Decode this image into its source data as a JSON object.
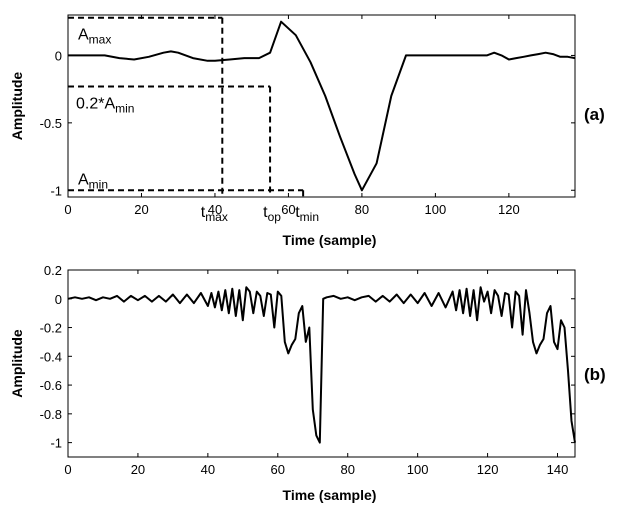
{
  "chart_data": [
    {
      "id": "a",
      "type": "line",
      "panel_label": "(a)",
      "title": "",
      "xlabel": "Time (sample)",
      "ylabel": "Amplitude",
      "xlim": [
        0,
        138
      ],
      "ylim": [
        -1.05,
        0.3
      ],
      "xticks": [
        0,
        20,
        40,
        60,
        80,
        100,
        120
      ],
      "yticks": [
        0,
        -0.5,
        -1
      ],
      "ytick_labels": [
        "0",
        "-0.5",
        "-1"
      ],
      "grid": false,
      "series": [
        {
          "x": [
            0,
            5,
            10,
            14,
            18,
            22,
            26,
            28,
            30,
            34,
            38,
            40,
            44,
            48,
            52,
            55,
            58,
            62,
            66,
            70,
            74,
            78,
            80,
            84,
            88,
            92,
            96,
            98,
            100,
            104,
            106,
            108,
            110,
            112,
            114,
            116,
            118,
            120,
            122,
            124,
            126,
            128,
            130,
            132,
            133,
            134,
            136,
            138
          ],
          "y": [
            0,
            0,
            0,
            -0.02,
            -0.03,
            -0.01,
            0.02,
            0.03,
            0.02,
            -0.02,
            -0.04,
            -0.04,
            -0.03,
            -0.02,
            -0.02,
            0.02,
            0.25,
            0.15,
            -0.05,
            -0.3,
            -0.6,
            -0.88,
            -1.0,
            -0.8,
            -0.3,
            0.0,
            0.0,
            0.0,
            0.0,
            0.0,
            0.0,
            0.0,
            0.0,
            0.0,
            0.0,
            0.02,
            0.0,
            -0.03,
            -0.02,
            -0.01,
            0.0,
            0.01,
            0.02,
            0.01,
            0.0,
            -0.01,
            -0.01,
            -0.02
          ]
        }
      ],
      "annotations": {
        "a_max": {
          "label": "A",
          "sub": "max",
          "y": 0.28,
          "x_end": 42
        },
        "a_min_02": {
          "label": "0.2*A",
          "sub": "min",
          "y": -0.23,
          "x_end": 55
        },
        "a_min": {
          "label": "A",
          "sub": "min",
          "y": -1.0,
          "x_end": 64
        },
        "t_max": {
          "label": "t",
          "sub": "max",
          "x": 42
        },
        "t_op": {
          "label": "t",
          "sub": "op",
          "x": 55
        },
        "t_min": {
          "label": "t",
          "sub": "min",
          "x": 64
        }
      }
    },
    {
      "id": "b",
      "type": "line",
      "panel_label": "(b)",
      "title": "",
      "xlabel": "Time (sample)",
      "ylabel": "Amplitude",
      "xlim": [
        0,
        145
      ],
      "ylim": [
        -1.1,
        0.2
      ],
      "xticks": [
        0,
        20,
        40,
        60,
        80,
        100,
        120,
        140
      ],
      "yticks": [
        0.2,
        0,
        -0.2,
        -0.4,
        -0.6,
        -0.8,
        -1
      ],
      "ytick_labels": [
        "0.2",
        "0",
        "-0.2",
        "-0.4",
        "-0.6",
        "-0.8",
        "-1"
      ],
      "grid": false,
      "series": [
        {
          "x": [
            0,
            2,
            4,
            6,
            8,
            10,
            12,
            14,
            16,
            18,
            20,
            22,
            24,
            26,
            28,
            30,
            32,
            34,
            36,
            38,
            40,
            41,
            42,
            43,
            44,
            45,
            46,
            47,
            48,
            49,
            50,
            51,
            52,
            53,
            54,
            55,
            56,
            57,
            58,
            59,
            60,
            61,
            62,
            63,
            64,
            65,
            66,
            67,
            68,
            69,
            70,
            71,
            72,
            73,
            74,
            76,
            78,
            80,
            82,
            84,
            86,
            88,
            90,
            92,
            94,
            96,
            98,
            100,
            102,
            104,
            106,
            108,
            110,
            111,
            112,
            113,
            114,
            115,
            116,
            117,
            118,
            119,
            120,
            121,
            122,
            123,
            124,
            125,
            126,
            127,
            128,
            129,
            130,
            131,
            132,
            133,
            134,
            135,
            136,
            137,
            138,
            139,
            140,
            141,
            142,
            143,
            144,
            145
          ],
          "y": [
            0,
            0.01,
            0,
            0.01,
            -0.01,
            0.01,
            0,
            0.02,
            -0.02,
            0.02,
            -0.01,
            0.02,
            -0.02,
            0.02,
            -0.02,
            0.03,
            -0.03,
            0.03,
            -0.03,
            0.04,
            -0.05,
            0.04,
            -0.06,
            0.05,
            -0.08,
            0.06,
            -0.1,
            0.07,
            -0.12,
            0.06,
            -0.15,
            0.08,
            0.05,
            -0.1,
            0.05,
            0.02,
            -0.12,
            0.04,
            0.03,
            -0.2,
            0.05,
            0.02,
            -0.3,
            -0.38,
            -0.32,
            -0.28,
            -0.1,
            -0.05,
            -0.3,
            -0.2,
            -0.77,
            -0.95,
            -1.0,
            0.0,
            0.01,
            0.02,
            0,
            0.01,
            -0.01,
            0.01,
            0.02,
            -0.02,
            0.02,
            -0.02,
            0.03,
            -0.03,
            0.03,
            -0.03,
            0.04,
            -0.05,
            0.04,
            -0.06,
            0.05,
            -0.08,
            0.06,
            -0.1,
            0.07,
            -0.12,
            0.06,
            -0.15,
            0.08,
            -0.02,
            0.05,
            -0.1,
            0.06,
            0.02,
            -0.12,
            0.04,
            0.03,
            -0.2,
            0.05,
            0.02,
            -0.25,
            0.06,
            -0.1,
            -0.3,
            -0.38,
            -0.32,
            -0.28,
            -0.1,
            -0.05,
            -0.3,
            -0.35,
            -0.15,
            -0.2,
            -0.5,
            -0.85,
            -1.0
          ]
        }
      ]
    }
  ]
}
